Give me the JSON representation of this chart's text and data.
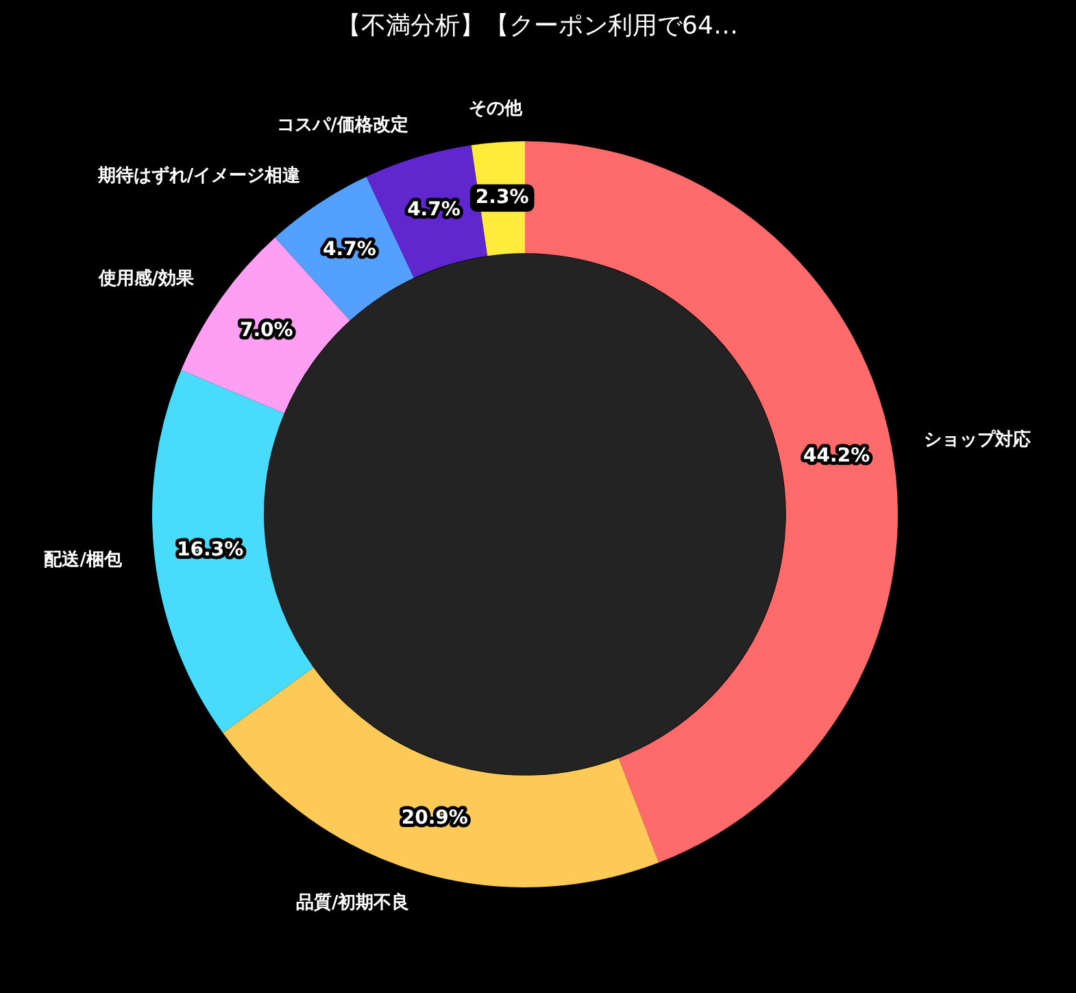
{
  "chart_data": {
    "type": "donut",
    "title": "【不満分析】【クーポン利用で64…",
    "categories": [
      "ショップ対応",
      "品質/初期不良",
      "配送/梱包",
      "使用感/効果",
      "期待はずれ/イメージ相違",
      "コスパ/価格改定",
      "その他"
    ],
    "values": [
      44.2,
      20.9,
      16.3,
      7.0,
      4.7,
      4.7,
      2.3
    ],
    "value_labels": [
      "44.2%",
      "20.9%",
      "16.3%",
      "7.0%",
      "4.7%",
      "4.7%",
      "2.3%"
    ],
    "colors": [
      "#ff6b6b",
      "#feca57",
      "#48dbfb",
      "#ff9ff3",
      "#54a0ff",
      "#5f27cd",
      "#ffeb3b"
    ],
    "legend": false
  }
}
